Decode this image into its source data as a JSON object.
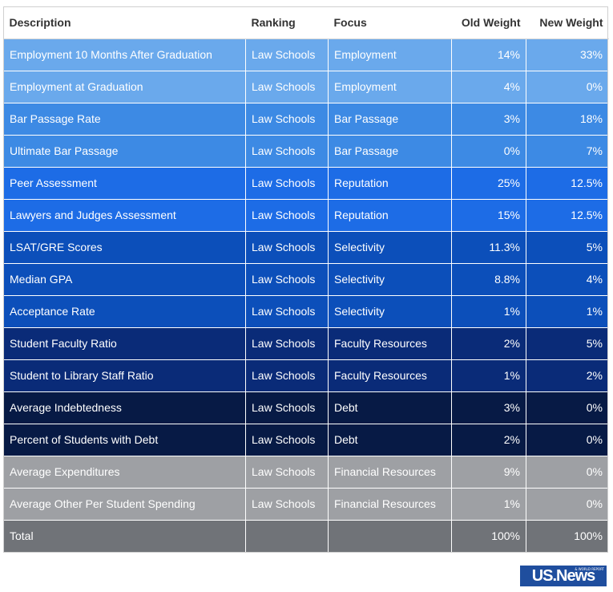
{
  "table": {
    "headers": [
      "Description",
      "Ranking",
      "Focus",
      "Old Weight",
      "New Weight"
    ]
  },
  "chart_data": {
    "type": "table",
    "columns": [
      "Description",
      "Ranking",
      "Focus",
      "Old Weight",
      "New Weight"
    ],
    "rows": [
      {
        "description": "Employment 10 Months After Graduation",
        "ranking": "Law Schools",
        "focus": "Employment",
        "old": "14%",
        "new": "33%",
        "color": "#6aa9ec"
      },
      {
        "description": "Employment at Graduation",
        "ranking": "Law Schools",
        "focus": "Employment",
        "old": "4%",
        "new": "0%",
        "color": "#6aa9ec"
      },
      {
        "description": "Bar Passage Rate",
        "ranking": "Law Schools",
        "focus": "Bar Passage",
        "old": "3%",
        "new": "18%",
        "color": "#3d8ae4"
      },
      {
        "description": "Ultimate Bar Passage",
        "ranking": "Law Schools",
        "focus": "Bar Passage",
        "old": "0%",
        "new": "7%",
        "color": "#3d8ae4"
      },
      {
        "description": "Peer Assessment",
        "ranking": "Law Schools",
        "focus": "Reputation",
        "old": "25%",
        "new": "12.5%",
        "color": "#1d6ce6"
      },
      {
        "description": "Lawyers and Judges Assessment",
        "ranking": "Law Schools",
        "focus": "Reputation",
        "old": "15%",
        "new": "12.5%",
        "color": "#1d6ce6"
      },
      {
        "description": "LSAT/GRE Scores",
        "ranking": "Law Schools",
        "focus": "Selectivity",
        "old": "11.3%",
        "new": "5%",
        "color": "#0c4fba"
      },
      {
        "description": "Median GPA",
        "ranking": "Law Schools",
        "focus": "Selectivity",
        "old": "8.8%",
        "new": "4%",
        "color": "#0c4fba"
      },
      {
        "description": "Acceptance Rate",
        "ranking": "Law Schools",
        "focus": "Selectivity",
        "old": "1%",
        "new": "1%",
        "color": "#0c4fba"
      },
      {
        "description": "Student Faculty Ratio",
        "ranking": "Law Schools",
        "focus": "Faculty Resources",
        "old": "2%",
        "new": "5%",
        "color": "#0a2b78"
      },
      {
        "description": "Student to Library Staff Ratio",
        "ranking": "Law Schools",
        "focus": "Faculty Resources",
        "old": "1%",
        "new": "2%",
        "color": "#0a2b78"
      },
      {
        "description": "Average Indebtedness",
        "ranking": "Law Schools",
        "focus": "Debt",
        "old": "3%",
        "new": "0%",
        "color": "#071a45"
      },
      {
        "description": "Percent of Students with Debt",
        "ranking": "Law Schools",
        "focus": "Debt",
        "old": "2%",
        "new": "0%",
        "color": "#071a45"
      },
      {
        "description": "Average Expenditures",
        "ranking": "Law Schools",
        "focus": "Financial Resources",
        "old": "9%",
        "new": "0%",
        "color": "#9ea0a4"
      },
      {
        "description": "Average Other Per Student Spending",
        "ranking": "Law Schools",
        "focus": "Financial Resources",
        "old": "1%",
        "new": "0%",
        "color": "#9ea0a4"
      },
      {
        "description": "Total",
        "ranking": "",
        "focus": "",
        "old": "100%",
        "new": "100%",
        "color": "#707378"
      }
    ]
  },
  "logo": {
    "text": "US.News",
    "subtext": "& WORLD REPORT"
  }
}
